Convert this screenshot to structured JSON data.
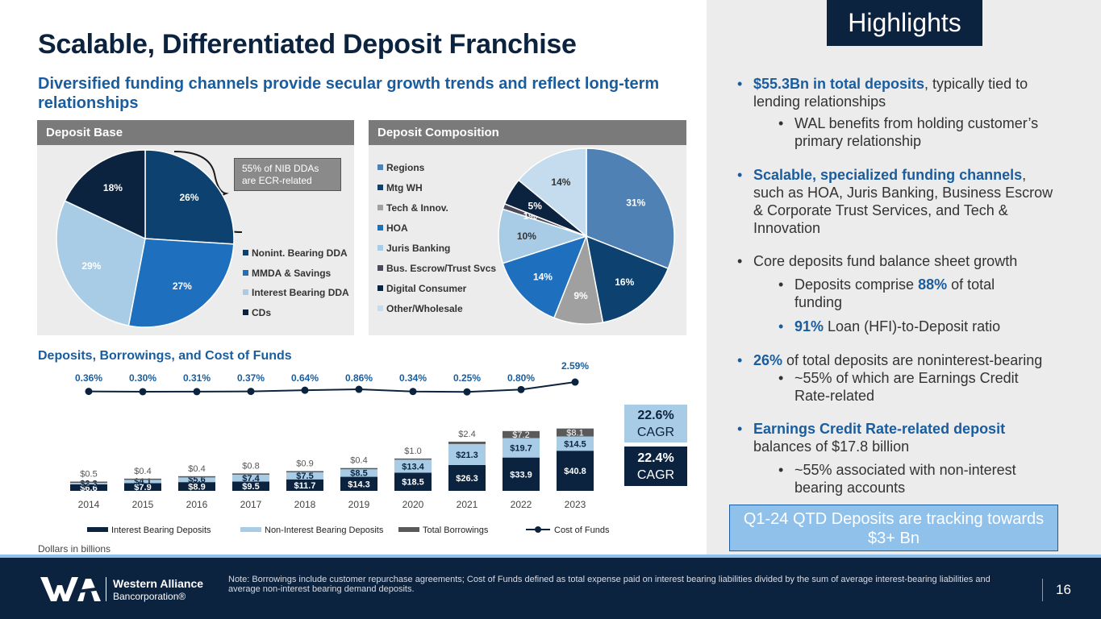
{
  "header": {
    "title": "Scalable, Differentiated Deposit Franchise",
    "subtitle": "Diversified funding channels provide secular growth trends and reflect long-term relationships"
  },
  "colors": {
    "navy": "#0c2340",
    "blue": "#1a5d9e",
    "light_blue": "#a8cce6",
    "gray": "#7a7a7a"
  },
  "deposit_base": {
    "header": "Deposit Base",
    "callout": [
      "55% of NIB DDAs",
      "are ECR-related"
    ]
  },
  "deposit_composition": {
    "header": "Deposit Composition"
  },
  "bar_section": {
    "title": "Deposits, Borrowings, and Cost of Funds",
    "cagr_top": {
      "pct": "22.6%",
      "label": "CAGR"
    },
    "cagr_bottom": {
      "pct": "22.4%",
      "label": "CAGR"
    },
    "note": "Dollars in billions"
  },
  "chart_data": [
    {
      "type": "pie",
      "labels": [
        "Nonint. Bearing DDA",
        "MMDA & Savings",
        "Interest Bearing DDA",
        "CDs"
      ],
      "values": [
        26,
        27,
        29,
        18
      ],
      "value_labels": [
        "26%",
        "27%",
        "29%",
        "18%"
      ],
      "colors": [
        "#0c4170",
        "#1f6fbf",
        "#a8cce6",
        "#0c2340"
      ],
      "legend": "right"
    },
    {
      "type": "pie",
      "labels": [
        "Regions",
        "Mtg WH",
        "Tech & Innov.",
        "HOA",
        "Juris Banking",
        "Bus. Escrow/Trust Svcs",
        "Digital Consumer",
        "Other/Wholesale"
      ],
      "values": [
        31,
        16,
        9,
        14,
        10,
        1,
        5,
        14
      ],
      "value_labels": [
        "31%",
        "16%",
        "9%",
        "14%",
        "10%",
        "1%",
        "5%",
        "14%"
      ],
      "colors": [
        "#4f81b5",
        "#0c4170",
        "#a0a0a0",
        "#1f6fbf",
        "#a8cce6",
        "#4a4a5a",
        "#0c2340",
        "#c4dcee"
      ],
      "legend": "left"
    },
    {
      "type": "bar",
      "stacked": true,
      "categories": [
        "2014",
        "2015",
        "2016",
        "2017",
        "2018",
        "2019",
        "2020",
        "2021",
        "2022",
        "2023"
      ],
      "series": [
        {
          "name": "Interest Bearing Deposits",
          "color": "#0c2340",
          "values": [
            6.6,
            7.9,
            8.9,
            9.5,
            11.7,
            14.3,
            18.5,
            26.3,
            33.9,
            40.8
          ],
          "labels": [
            "$6.6",
            "$7.9",
            "$8.9",
            "$9.5",
            "$11.7",
            "$14.3",
            "$18.5",
            "$26.3",
            "$33.9",
            "$40.8"
          ]
        },
        {
          "name": "Non-Interest Bearing Deposits",
          "color": "#a8cce6",
          "values": [
            2.3,
            4.1,
            5.6,
            7.4,
            7.5,
            8.5,
            13.4,
            21.3,
            19.7,
            14.5
          ],
          "labels": [
            "$2.3",
            "$4.1",
            "$5.6",
            "$7.4",
            "$7.5",
            "$8.5",
            "$13.4",
            "$21.3",
            "$19.7",
            "$14.5"
          ]
        },
        {
          "name": "Total Borrowings",
          "color": "#5a5a5a",
          "values": [
            0.5,
            0.4,
            0.4,
            0.8,
            0.9,
            0.4,
            1.0,
            2.4,
            7.2,
            8.1
          ],
          "labels": [
            "$0.5",
            "$0.4",
            "$0.4",
            "$0.8",
            "$0.9",
            "$0.4",
            "$1.0",
            "$2.4",
            "$7.2",
            "$8.1"
          ]
        }
      ],
      "line_series": {
        "name": "Cost of Funds",
        "color": "#0c2340",
        "values": [
          0.36,
          0.3,
          0.31,
          0.37,
          0.64,
          0.86,
          0.34,
          0.25,
          0.8,
          2.59
        ],
        "labels": [
          "0.36%",
          "0.30%",
          "0.31%",
          "0.37%",
          "0.64%",
          "0.86%",
          "0.34%",
          "0.25%",
          "0.80%",
          "2.59%"
        ]
      },
      "legend": "bottom"
    }
  ],
  "highlights": {
    "title": "Highlights",
    "q1_box": "Q1-24 QTD Deposits are tracking towards $3+ Bn",
    "b1_bold": "$55.3Bn in total deposits",
    "b1_rest": ", typically tied to lending relationships",
    "b1_sub": "WAL benefits from holding customer’s primary relationship",
    "b2_bold": "Scalable, specialized funding channels",
    "b2_rest": ", such as HOA, Juris Banking, Business Escrow & Corporate Trust Services, and Tech & Innovation",
    "b3": "Core deposits fund balance sheet growth",
    "b3_sub1_pre": "Deposits comprise ",
    "b3_sub1_bold": "88%",
    "b3_sub1_post": " of total funding",
    "b3_sub2_bold": "91%",
    "b3_sub2_post": " Loan (HFI)-to-Deposit ratio",
    "b4_bold": "26%",
    "b4_rest": " of total deposits are noninterest-bearing",
    "b4_sub": "~55% of which are Earnings Credit Rate-related",
    "b5_bold": "Earnings Credit Rate-related deposit",
    "b5_rest": " balances of $17.8 billion",
    "b5_sub": "~55% associated with non-interest bearing accounts",
    "bullet": "•"
  },
  "footer": {
    "company_line1": "Western Alliance",
    "company_line2": "Bancorporation®",
    "note": "Note: Borrowings include customer repurchase agreements; Cost of Funds defined as total expense paid on interest bearing liabilities divided by the sum of average interest-bearing liabilities and average non-interest bearing demand deposits.",
    "page": "16"
  }
}
